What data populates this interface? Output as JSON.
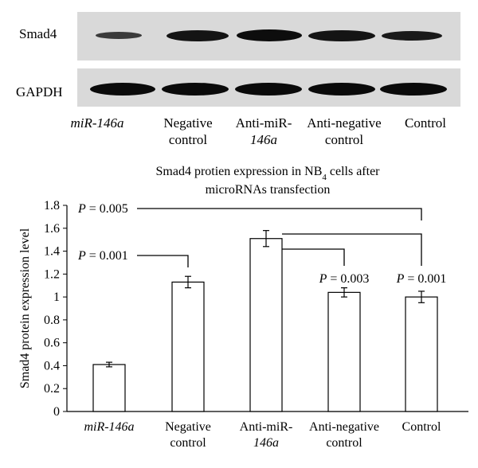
{
  "blot": {
    "row_labels": [
      "Smad4",
      "GAPDH"
    ],
    "lanes": [
      {
        "label_line1": "miR-146a",
        "label_line2": "",
        "italic_line1": true
      },
      {
        "label_line1": "Negative",
        "label_line2": "control"
      },
      {
        "label_line1": "Anti-miR-",
        "label_line2": "146a",
        "partial_italic": true
      },
      {
        "label_line1": "Anti-negative",
        "label_line2": "control"
      },
      {
        "label_line1": "Control",
        "label_line2": ""
      }
    ]
  },
  "chart_data": {
    "type": "bar",
    "title_line1": "Smad4 protien expression in NB",
    "title_sub": "4",
    "title_line1_end": " cells after",
    "title_line2": "microRNAs transfection",
    "ylabel": "Smad4 protein expression level",
    "ylim": [
      0,
      1.8
    ],
    "yticks": [
      "0",
      "0.2",
      "0.4",
      "0.6",
      "0.8",
      "1",
      "1.2",
      "1.4",
      "1.6",
      "1.8"
    ],
    "categories": [
      {
        "line1": "miR-146a",
        "line2": ""
      },
      {
        "line1": "Negative",
        "line2": "control"
      },
      {
        "line1": "Anti-miR-",
        "line2": "146a"
      },
      {
        "line1": "Anti-negative",
        "line2": "control"
      },
      {
        "line1": "Control",
        "line2": ""
      }
    ],
    "values": [
      0.41,
      1.13,
      1.51,
      1.04,
      1.0
    ],
    "errors": [
      0.02,
      0.05,
      0.07,
      0.04,
      0.05
    ],
    "annotations": [
      {
        "text": "P = 0.005",
        "from": 0,
        "to": 4
      },
      {
        "text": "P = 0.001",
        "from": 0,
        "to": 1
      },
      {
        "text": "P = 0.003",
        "from": 2,
        "to": 3
      },
      {
        "text": "P = 0.001",
        "from": 2,
        "to": 4
      }
    ],
    "colors": {
      "bar_fill": "#ffffff",
      "bar_stroke": "#000000"
    }
  }
}
